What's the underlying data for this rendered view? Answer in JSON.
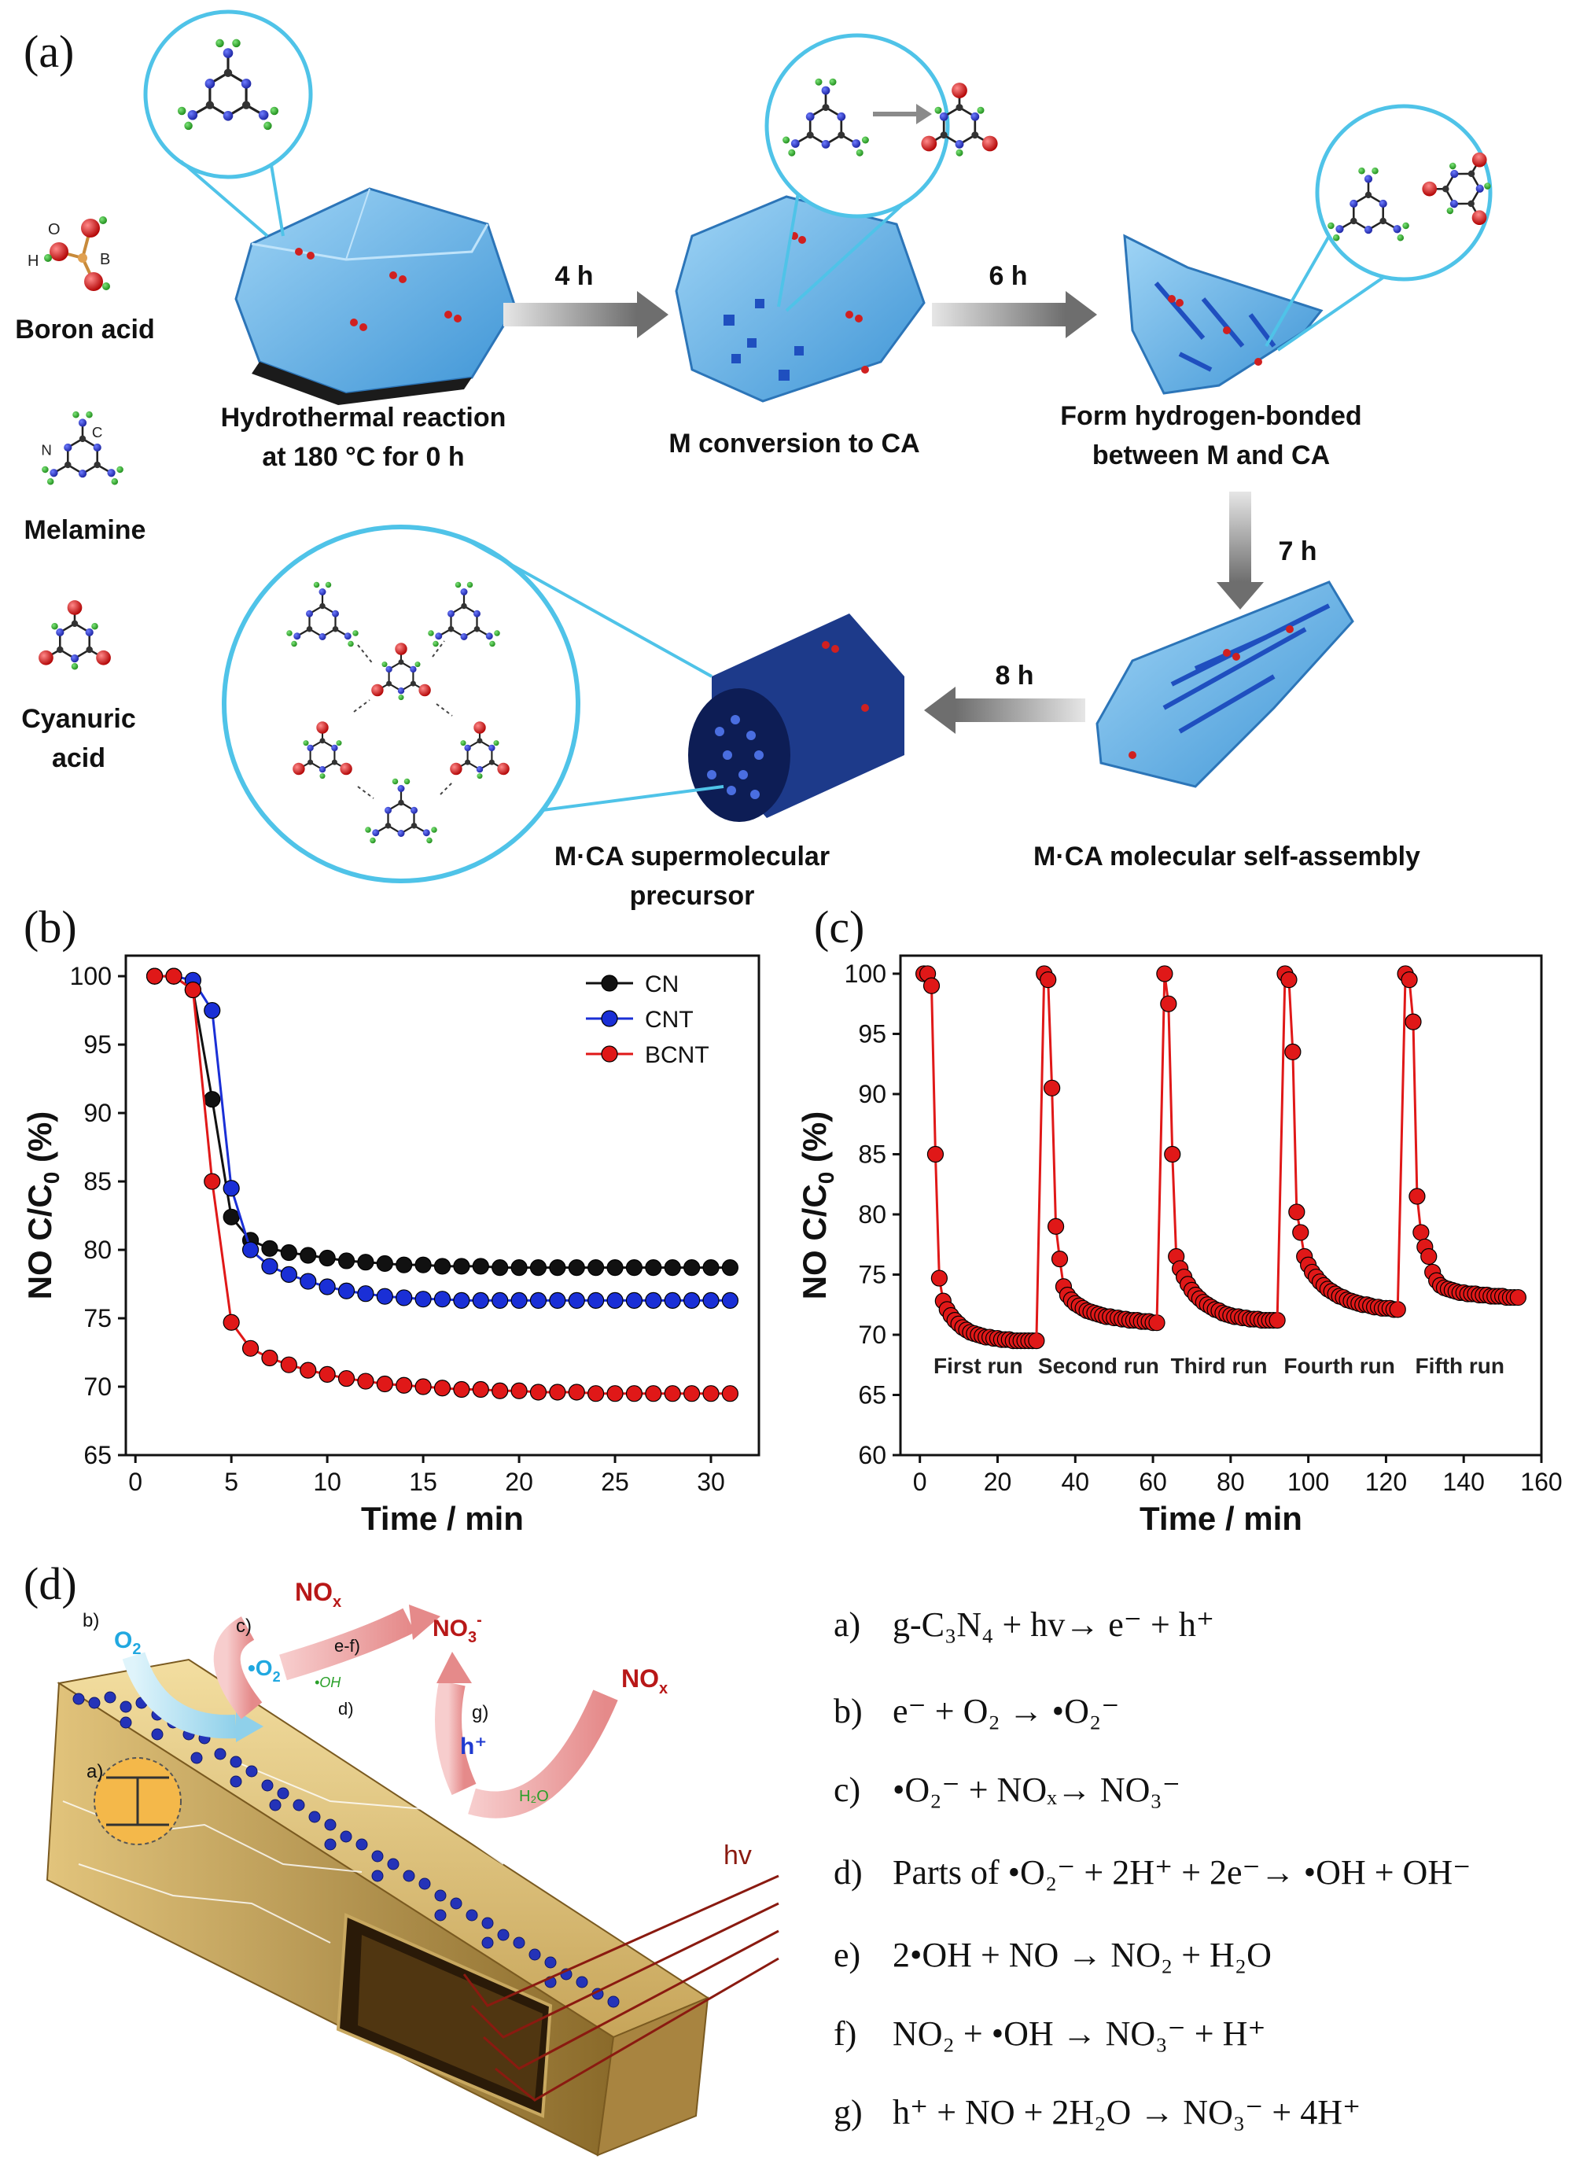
{
  "panel_a": {
    "label": "(a)",
    "legend": [
      {
        "name": "Boron acid",
        "atoms": [
          "O",
          "B",
          "H"
        ]
      },
      {
        "name": "Melamine",
        "atoms": [
          "N",
          "C"
        ]
      },
      {
        "name": "Cyanuric acid",
        "line1": "Cyanuric",
        "line2": "acid"
      }
    ],
    "steps": [
      {
        "caption_line1": "Hydrothermal reaction",
        "caption_line2": "at 180 °C for 0 h"
      },
      {
        "caption_line1": "M conversion to CA"
      },
      {
        "caption_line1": "Form hydrogen-bonded",
        "caption_line2": "between M and CA"
      },
      {
        "caption_line1": "M·CA molecular self-assembly"
      },
      {
        "caption_line1": "M·CA  supermolecular",
        "caption_line2": "precursor"
      }
    ],
    "arrows": [
      "4 h",
      "6 h",
      "7 h",
      "8 h"
    ]
  },
  "panel_b": {
    "label": "(b)"
  },
  "panel_c": {
    "label": "(c)"
  },
  "panel_d": {
    "label": "(d)",
    "diagram_labels": {
      "nox_top": "NO",
      "nox_top_sub": "x",
      "nox_right": "NO",
      "nox_right_sub": "x",
      "o2": "O",
      "o2_sub": "2",
      "o2_radical": "•O",
      "o2_radical_sub": "2",
      "no3": "NO",
      "no3_sub": "3",
      "no3_sup": "-",
      "oh": "•OH",
      "h_plus": "h⁺",
      "h2o": "H₂O",
      "hv": "hv",
      "step_a": "a)",
      "step_b": "b)",
      "step_c": "c)",
      "step_d": "d)",
      "step_ef": "e-f)",
      "step_g": "g)"
    },
    "equations": [
      {
        "label": "a)",
        "text": "g-C₃N₄ + hv→ e⁻ + h⁺"
      },
      {
        "label": "b)",
        "text": "e⁻ + O₂ → •O₂⁻"
      },
      {
        "label": "c)",
        "text": "•O₂⁻ + NOₓ→ NO₃⁻"
      },
      {
        "label": "d)",
        "text": "Parts of •O₂⁻ + 2H⁺ + 2e⁻→ •OH + OH⁻"
      },
      {
        "label": "e)",
        "text": "2•OH + NO → NO₂ + H₂O"
      },
      {
        "label": "f)",
        "text": "NO₂ + •OH → NO₃⁻ + H⁺"
      },
      {
        "label": "g)",
        "text": "h⁺ + NO + 2H₂O → NO₃⁻ + 4H⁺"
      }
    ]
  },
  "colors": {
    "cn": "#111111",
    "cnt": "#1a2fd6",
    "bcnt": "#e01818",
    "crystal": "#5fb2e6",
    "tube": "#1d3a8a",
    "arrow": "#7a7a7a",
    "magnify": "#4fc3e8"
  },
  "chart_data": [
    {
      "type": "line",
      "panel": "(b)",
      "xlabel": "Time / min",
      "ylabel": "NO C/C",
      "ylabel_sub": "0",
      "ylabel_tail": " (%)",
      "xlim": [
        -0.5,
        32.5
      ],
      "ylim": [
        65,
        101.5
      ],
      "xticks": [
        0,
        5,
        10,
        15,
        20,
        25,
        30
      ],
      "yticks": [
        65,
        70,
        75,
        80,
        85,
        90,
        95,
        100
      ],
      "legend_position": "top-right",
      "x": [
        1,
        2,
        3,
        4,
        5,
        6,
        7,
        8,
        9,
        10,
        11,
        12,
        13,
        14,
        15,
        16,
        17,
        18,
        19,
        20,
        21,
        22,
        23,
        24,
        25,
        26,
        27,
        28,
        29,
        30,
        31
      ],
      "series": [
        {
          "name": "CN",
          "color": "#111111",
          "values": [
            100,
            100,
            99,
            91,
            82.4,
            80.7,
            80.1,
            79.8,
            79.6,
            79.4,
            79.2,
            79.1,
            79.0,
            78.9,
            78.9,
            78.8,
            78.8,
            78.8,
            78.7,
            78.7,
            78.7,
            78.7,
            78.7,
            78.7,
            78.7,
            78.7,
            78.7,
            78.7,
            78.7,
            78.7,
            78.7
          ]
        },
        {
          "name": "CNT",
          "color": "#1a2fd6",
          "values": [
            100,
            100,
            99.7,
            97.5,
            84.5,
            80.0,
            78.8,
            78.2,
            77.7,
            77.3,
            77.0,
            76.8,
            76.6,
            76.5,
            76.4,
            76.4,
            76.3,
            76.3,
            76.3,
            76.3,
            76.3,
            76.3,
            76.3,
            76.3,
            76.3,
            76.3,
            76.3,
            76.3,
            76.3,
            76.3,
            76.3
          ]
        },
        {
          "name": "BCNT",
          "color": "#e01818",
          "values": [
            100,
            100,
            99,
            85,
            74.7,
            72.8,
            72.1,
            71.6,
            71.2,
            70.9,
            70.6,
            70.4,
            70.2,
            70.1,
            70.0,
            69.9,
            69.8,
            69.8,
            69.7,
            69.7,
            69.6,
            69.6,
            69.6,
            69.5,
            69.5,
            69.5,
            69.5,
            69.5,
            69.5,
            69.5,
            69.5
          ]
        }
      ]
    },
    {
      "type": "line",
      "panel": "(c)",
      "xlabel": "Time / min",
      "ylabel": "NO C/C",
      "ylabel_sub": "0",
      "ylabel_tail": " (%)",
      "xlim": [
        -5,
        160
      ],
      "ylim": [
        60,
        101.5
      ],
      "xticks": [
        0,
        20,
        40,
        60,
        80,
        100,
        120,
        140,
        160
      ],
      "yticks": [
        60,
        65,
        70,
        75,
        80,
        85,
        90,
        95,
        100
      ],
      "run_labels": [
        "First run",
        "Second run",
        "Third run",
        "Fourth run",
        "Fifth run"
      ],
      "runs": [
        {
          "start": 1,
          "values": [
            100,
            100,
            99,
            85,
            74.7,
            72.8,
            72.1,
            71.6,
            71.2,
            70.9,
            70.6,
            70.4,
            70.2,
            70.1,
            70.0,
            69.9,
            69.8,
            69.8,
            69.7,
            69.7,
            69.6,
            69.6,
            69.6,
            69.5,
            69.5,
            69.5,
            69.5,
            69.5,
            69.5,
            69.5
          ]
        },
        {
          "start": 32,
          "values": [
            100,
            99.5,
            90.5,
            79,
            76.3,
            74,
            73.3,
            72.9,
            72.6,
            72.4,
            72.2,
            72.0,
            71.9,
            71.8,
            71.7,
            71.6,
            71.5,
            71.5,
            71.4,
            71.4,
            71.3,
            71.3,
            71.2,
            71.2,
            71.2,
            71.1,
            71.1,
            71.1,
            71.0,
            71.0
          ]
        },
        {
          "start": 63,
          "values": [
            100,
            97.5,
            85,
            76.5,
            75.5,
            74.8,
            74.2,
            73.7,
            73.3,
            73.0,
            72.7,
            72.5,
            72.3,
            72.1,
            72.0,
            71.8,
            71.7,
            71.6,
            71.5,
            71.5,
            71.4,
            71.4,
            71.3,
            71.3,
            71.3,
            71.2,
            71.2,
            71.2,
            71.2,
            71.2
          ]
        },
        {
          "start": 94,
          "values": [
            100,
            99.5,
            93.5,
            80.2,
            78.5,
            76.5,
            75.8,
            75.2,
            74.8,
            74.4,
            74.1,
            73.8,
            73.6,
            73.4,
            73.2,
            73.1,
            72.9,
            72.8,
            72.7,
            72.6,
            72.5,
            72.5,
            72.4,
            72.3,
            72.3,
            72.2,
            72.2,
            72.2,
            72.1,
            72.1
          ]
        },
        {
          "start": 125,
          "values": [
            100,
            99.5,
            96,
            81.5,
            78.5,
            77.3,
            76.5,
            75.2,
            74.5,
            74.1,
            73.9,
            73.8,
            73.7,
            73.6,
            73.5,
            73.5,
            73.4,
            73.4,
            73.4,
            73.3,
            73.3,
            73.3,
            73.2,
            73.2,
            73.2,
            73.2,
            73.1,
            73.1,
            73.1,
            73.1
          ]
        }
      ]
    }
  ]
}
